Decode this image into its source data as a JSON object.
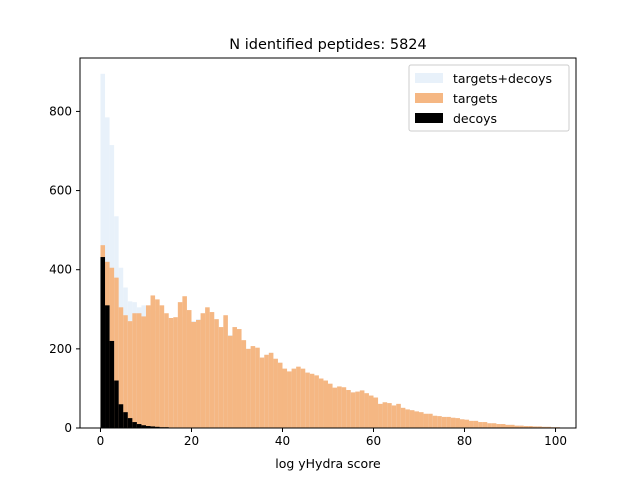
{
  "chart_data": {
    "type": "bar",
    "title": "N identified peptides: 5824",
    "xlabel": "log yHydra score",
    "ylabel": "",
    "xlim": [
      -4.5,
      104.5
    ],
    "ylim": [
      0,
      935
    ],
    "xticks": [
      0,
      20,
      40,
      60,
      80,
      100
    ],
    "yticks": [
      0,
      200,
      400,
      600,
      800
    ],
    "bin_start": 0,
    "bin_width": 1,
    "grid": false,
    "legend_position": "top-right",
    "series": [
      {
        "name": "targets+decoys",
        "color": "#e8f1fa",
        "values": [
          895,
          785,
          715,
          535,
          405,
          355,
          320,
          318,
          305,
          310,
          290,
          300,
          295,
          285,
          280,
          275,
          270,
          280,
          300,
          295,
          270,
          275,
          290,
          300,
          290,
          275,
          255,
          280,
          235,
          255,
          250,
          220,
          200,
          205,
          200,
          175,
          185,
          190,
          175,
          165,
          150,
          140,
          150,
          150,
          145,
          140,
          135,
          130,
          125,
          120,
          110,
          100,
          105,
          100,
          95,
          90,
          92,
          95,
          85,
          80,
          75,
          60,
          65,
          62,
          55,
          60,
          50,
          45,
          45,
          40,
          40,
          35,
          35,
          30,
          30,
          28,
          28,
          25,
          25,
          22,
          20,
          18,
          18,
          15,
          15,
          12,
          12,
          10,
          10,
          8,
          8,
          6,
          6,
          5,
          5,
          4,
          4,
          3,
          3,
          2,
          2
        ]
      },
      {
        "name": "targets",
        "color": "#f5b783",
        "values": [
          462,
          420,
          405,
          380,
          305,
          285,
          270,
          290,
          290,
          282,
          310,
          335,
          325,
          310,
          290,
          278,
          280,
          318,
          333,
          298,
          268,
          273,
          290,
          305,
          293,
          275,
          255,
          285,
          233,
          255,
          250,
          222,
          200,
          207,
          203,
          178,
          185,
          190,
          175,
          165,
          150,
          143,
          150,
          155,
          150,
          140,
          137,
          133,
          125,
          120,
          112,
          102,
          105,
          103,
          96,
          90,
          92,
          95,
          88,
          82,
          77,
          61,
          65,
          63,
          57,
          61,
          51,
          47,
          45,
          42,
          40,
          36,
          36,
          31,
          30,
          28,
          28,
          26,
          25,
          22,
          21,
          18,
          18,
          15,
          15,
          12,
          12,
          10,
          10,
          8,
          8,
          6,
          6,
          5,
          5,
          4,
          4,
          3,
          3,
          2,
          2
        ]
      },
      {
        "name": "decoys",
        "color": "#000000",
        "values": [
          432,
          310,
          220,
          120,
          60,
          40,
          25,
          15,
          10,
          7,
          5,
          4,
          3,
          2,
          2,
          1,
          1,
          1,
          1,
          1,
          0,
          0,
          0,
          0,
          0,
          0,
          0,
          0,
          0,
          0,
          0,
          0,
          0,
          0,
          0,
          0,
          0,
          0,
          0,
          0,
          0,
          0,
          0,
          0,
          0,
          0,
          0,
          0,
          0,
          0,
          0,
          0,
          0,
          0,
          0,
          0,
          0,
          0,
          0,
          0,
          0,
          0,
          0,
          0,
          0,
          0,
          0,
          0,
          0,
          0,
          0,
          0,
          0,
          0,
          0,
          0,
          0,
          0,
          0,
          0,
          0,
          0,
          0,
          0,
          0,
          0,
          0,
          0,
          0,
          0,
          0,
          0,
          0,
          0,
          0,
          0,
          0,
          0,
          0,
          0,
          0
        ]
      }
    ]
  }
}
